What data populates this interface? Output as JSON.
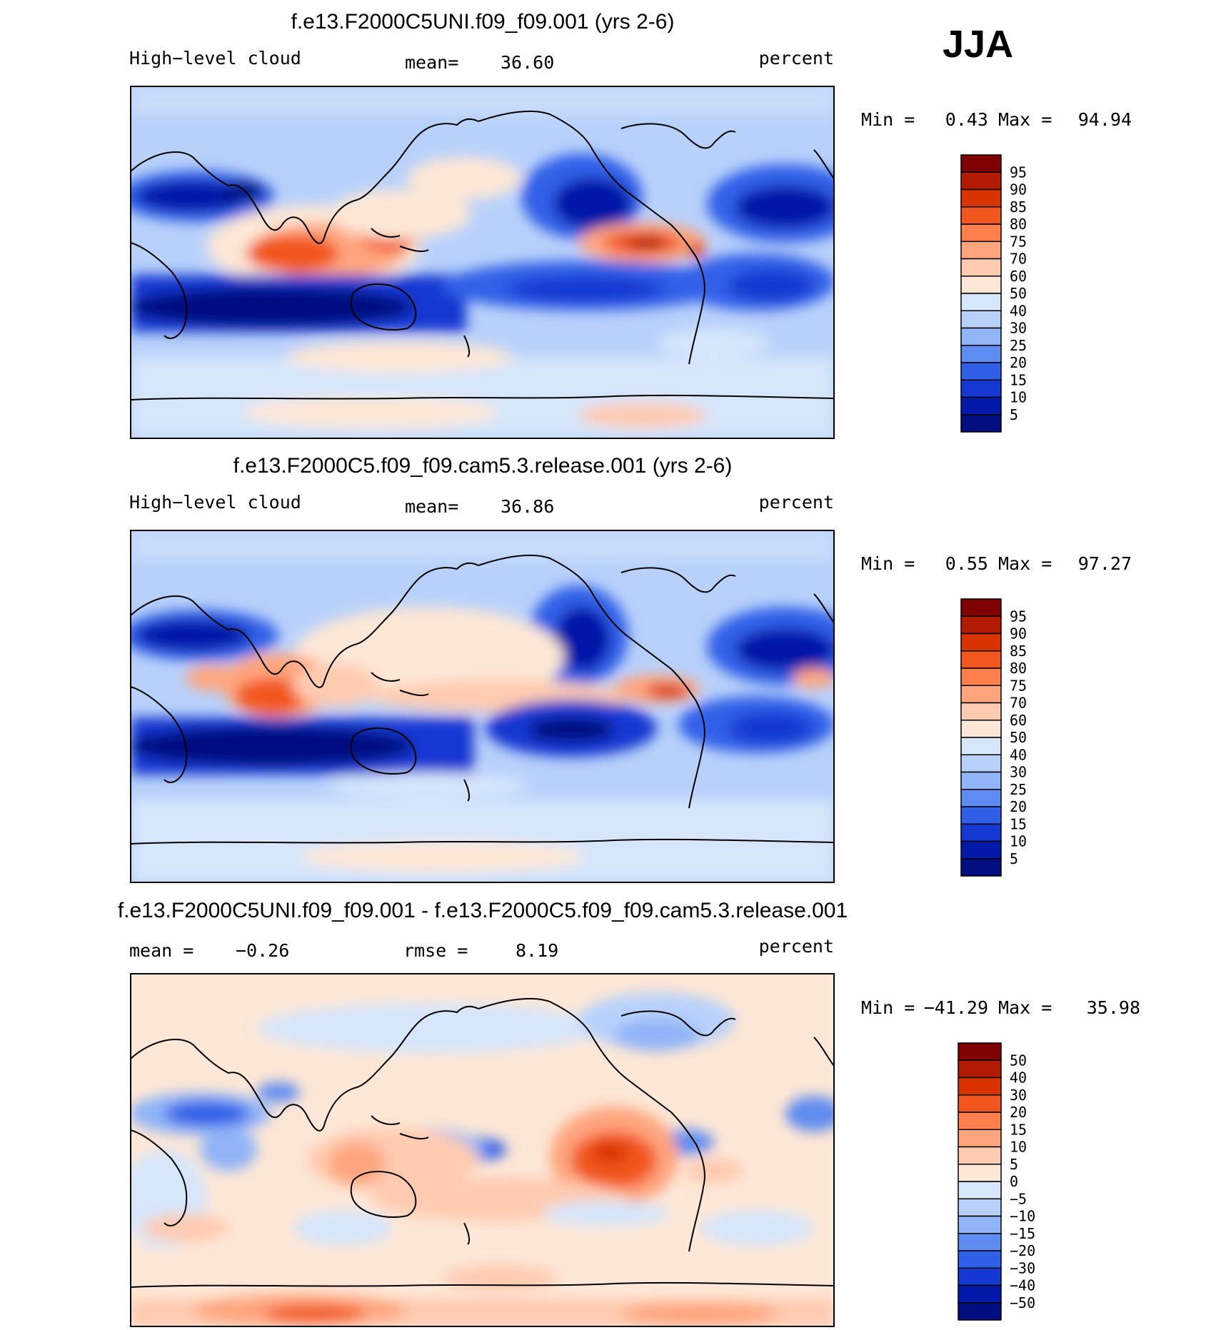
{
  "season": "JJA",
  "chart_data": [
    {
      "type": "heatmap",
      "title": "f.e13.F2000C5UNI.f09_f09.001 (yrs 2-6)",
      "variable": "High−level cloud",
      "units": "percent",
      "mean_label": "mean=",
      "mean_value": "36.60",
      "min_label": "Min =",
      "min_value": "0.43",
      "max_label": "Max =",
      "max_value": "94.94",
      "colorbar": {
        "labels": [
          "95",
          "90",
          "85",
          "80",
          "75",
          "70",
          "60",
          "50",
          "40",
          "30",
          "25",
          "20",
          "15",
          "10",
          "5"
        ],
        "colors": [
          "#7f0000",
          "#b31b00",
          "#d93300",
          "#f2561f",
          "#ff7f4d",
          "#ffa57e",
          "#ffcbb0",
          "#fde7d6",
          "#d6e6fb",
          "#b8d1fb",
          "#90b4f8",
          "#5f8cf0",
          "#3060e8",
          "#1538d2",
          "#0019a8",
          "#000e80"
        ]
      },
      "map": "global lat-lon, centered on 180°"
    },
    {
      "type": "heatmap",
      "title": "f.e13.F2000C5.f09_f09.cam5.3.release.001 (yrs 2-6)",
      "variable": "High−level cloud",
      "units": "percent",
      "mean_label": "mean=",
      "mean_value": "36.86",
      "min_label": "Min =",
      "min_value": "0.55",
      "max_label": "Max =",
      "max_value": "97.27",
      "colorbar": {
        "labels": [
          "95",
          "90",
          "85",
          "80",
          "75",
          "70",
          "60",
          "50",
          "40",
          "30",
          "25",
          "20",
          "15",
          "10",
          "5"
        ],
        "colors": [
          "#7f0000",
          "#b31b00",
          "#d93300",
          "#f2561f",
          "#ff7f4d",
          "#ffa57e",
          "#ffcbb0",
          "#fde7d6",
          "#d6e6fb",
          "#b8d1fb",
          "#90b4f8",
          "#5f8cf0",
          "#3060e8",
          "#1538d2",
          "#0019a8",
          "#000e80"
        ]
      },
      "map": "global lat-lon, centered on 180°"
    },
    {
      "type": "heatmap",
      "title": "f.e13.F2000C5UNI.f09_f09.001 - f.e13.F2000C5.f09_f09.cam5.3.release.001",
      "units": "percent",
      "mean_label": "mean =",
      "mean_value": "−0.26",
      "rmse_label": "rmse =",
      "rmse_value": "8.19",
      "min_label": "Min =",
      "min_value": "−41.29",
      "max_label": "Max =",
      "max_value": "35.98",
      "colorbar": {
        "labels": [
          "50",
          "40",
          "30",
          "20",
          "15",
          "10",
          "5",
          "0",
          "−5",
          "−10",
          "−15",
          "−20",
          "−30",
          "−40",
          "−50"
        ],
        "colors": [
          "#7f0000",
          "#b31b00",
          "#d93300",
          "#f2561f",
          "#ff7f4d",
          "#ffa57e",
          "#ffcbb0",
          "#fde7d6",
          "#d6e6fb",
          "#b8d1fb",
          "#90b4f8",
          "#5f8cf0",
          "#3060e8",
          "#1538d2",
          "#0019a8",
          "#000e80"
        ]
      },
      "map": "global lat-lon, centered on 180°"
    }
  ]
}
